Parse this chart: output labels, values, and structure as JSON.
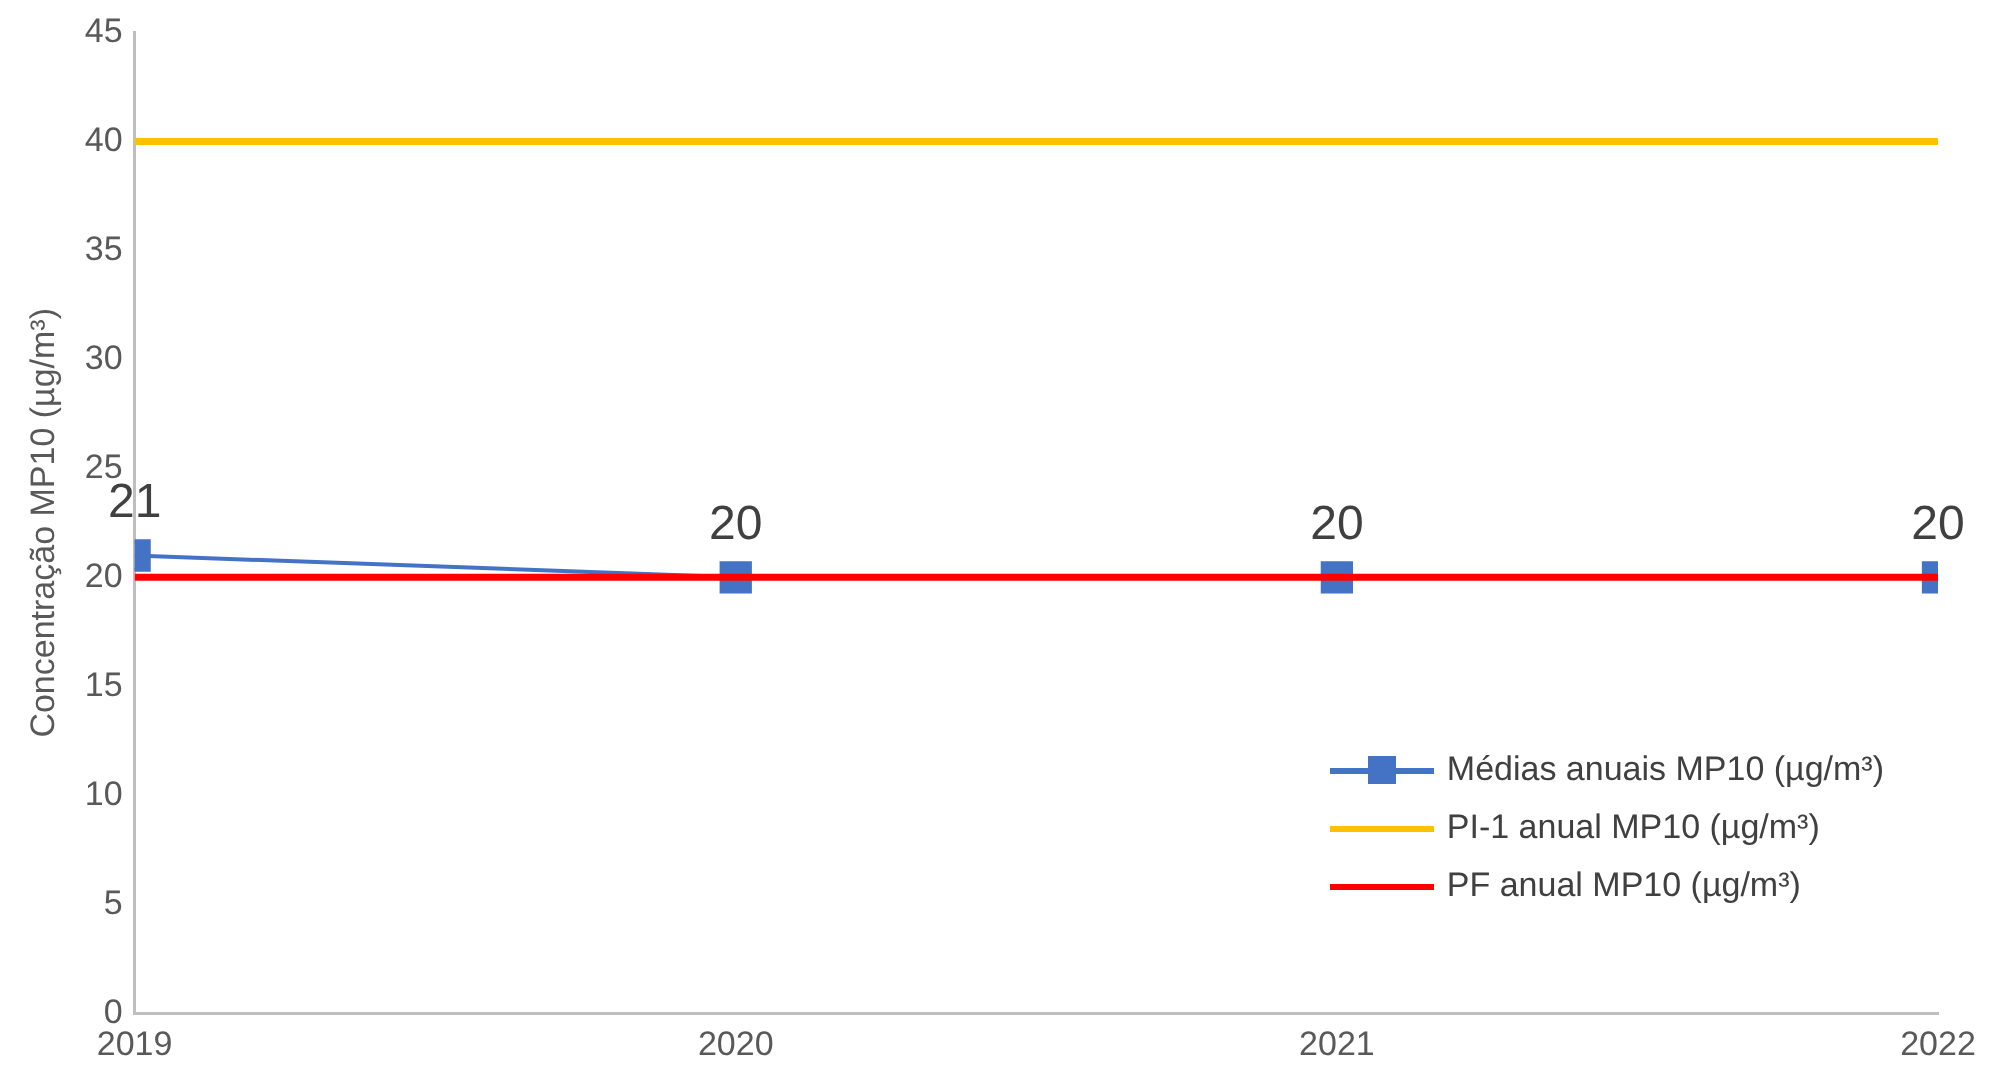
{
  "chart_data": {
    "type": "line",
    "ylabel": "Concentração MP10 (µg/m³)",
    "x": [
      2019,
      2020,
      2021,
      2022
    ],
    "xlim": [
      2019,
      2022
    ],
    "xticks": [
      2019,
      2020,
      2021,
      2022
    ],
    "ylim": [
      0,
      45
    ],
    "yticks": [
      0,
      5,
      10,
      15,
      20,
      25,
      30,
      35,
      40,
      45
    ],
    "grid": false,
    "legend": "bottom right",
    "series": [
      {
        "name": "Médias anuais MP10 (µg/m³)",
        "color": "#4472c4",
        "values": [
          21,
          20,
          20,
          20
        ],
        "marker": "square",
        "value_labels": [
          "21",
          "20",
          "20",
          "20"
        ]
      },
      {
        "name": "PI-1 anual MP10 (µg/m³)",
        "color": "#ffc000",
        "values": [
          40,
          40,
          40,
          40
        ],
        "marker": "none"
      },
      {
        "name": "PF anual MP10 (µg/m³)",
        "color": "#ff0000",
        "values": [
          20,
          20,
          20,
          20
        ],
        "marker": "none"
      }
    ]
  }
}
